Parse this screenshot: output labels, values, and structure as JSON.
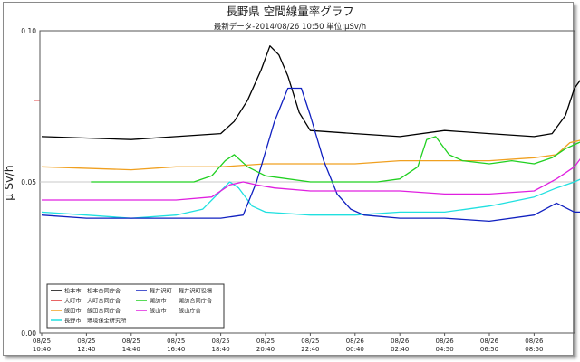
{
  "chart_data": {
    "type": "line",
    "title": "長野県 空間線量率グラフ",
    "subtitle": "最新データ-2014/08/26 10:50  単位:μSv/h",
    "ylabel": "μ Sv/h",
    "ylim": [
      0,
      0.1
    ],
    "yticks": [
      "0.00",
      "0.05",
      "0.10"
    ],
    "xticks": [
      {
        "date": "08/25",
        "time": "10:40"
      },
      {
        "date": "08/25",
        "time": "12:40"
      },
      {
        "date": "08/25",
        "time": "14:40"
      },
      {
        "date": "08/25",
        "time": "16:40"
      },
      {
        "date": "08/25",
        "time": "18:40"
      },
      {
        "date": "08/25",
        "time": "20:40"
      },
      {
        "date": "08/25",
        "time": "22:40"
      },
      {
        "date": "08/26",
        "time": "00:40"
      },
      {
        "date": "08/26",
        "time": "02:40"
      },
      {
        "date": "08/26",
        "time": "04:50"
      },
      {
        "date": "08/26",
        "time": "06:50"
      },
      {
        "date": "08/26",
        "time": "08:50"
      }
    ],
    "grid": "horizontal",
    "legend_position": "bottom-left",
    "series": [
      {
        "name": "松本市 松本合同庁舎",
        "color": "#000000",
        "points": [
          [
            0,
            0.065
          ],
          [
            2,
            0.064
          ],
          [
            3,
            0.065
          ],
          [
            4,
            0.066
          ],
          [
            4.3,
            0.07
          ],
          [
            4.6,
            0.077
          ],
          [
            4.9,
            0.087
          ],
          [
            5.1,
            0.095
          ],
          [
            5.3,
            0.092
          ],
          [
            5.5,
            0.085
          ],
          [
            5.75,
            0.073
          ],
          [
            6,
            0.067
          ],
          [
            7,
            0.066
          ],
          [
            8,
            0.065
          ],
          [
            9,
            0.067
          ],
          [
            10,
            0.066
          ],
          [
            11,
            0.065
          ],
          [
            11.4,
            0.066
          ],
          [
            11.7,
            0.072
          ],
          [
            11.9,
            0.081
          ],
          [
            12.1,
            0.085
          ],
          [
            12.3,
            0.085
          ]
        ]
      },
      {
        "name": "大町市 大町合同庁舎",
        "color": "#e03030",
        "points": [
          [
            -0.18,
            0.077
          ],
          [
            -0.05,
            0.077
          ]
        ]
      },
      {
        "name": "飯田市 飯田合同庁舎",
        "color": "#f0a020",
        "points": [
          [
            0,
            0.055
          ],
          [
            2,
            0.054
          ],
          [
            3,
            0.055
          ],
          [
            4,
            0.055
          ],
          [
            5,
            0.056
          ],
          [
            6,
            0.056
          ],
          [
            7,
            0.056
          ],
          [
            8,
            0.057
          ],
          [
            9,
            0.057
          ],
          [
            10,
            0.057
          ],
          [
            11,
            0.058
          ],
          [
            11.5,
            0.059
          ],
          [
            11.8,
            0.063
          ],
          [
            12.1,
            0.064
          ],
          [
            12.3,
            0.065
          ]
        ]
      },
      {
        "name": "長野市 環境保全研究所",
        "color": "#20e0e0",
        "points": [
          [
            0,
            0.04
          ],
          [
            1,
            0.039
          ],
          [
            2,
            0.038
          ],
          [
            3,
            0.039
          ],
          [
            3.6,
            0.041
          ],
          [
            4.0,
            0.047
          ],
          [
            4.2,
            0.05
          ],
          [
            4.4,
            0.048
          ],
          [
            4.7,
            0.042
          ],
          [
            5,
            0.04
          ],
          [
            6,
            0.039
          ],
          [
            7,
            0.039
          ],
          [
            8,
            0.04
          ],
          [
            9,
            0.04
          ],
          [
            10,
            0.042
          ],
          [
            11,
            0.045
          ],
          [
            11.5,
            0.048
          ],
          [
            11.9,
            0.05
          ],
          [
            12.2,
            0.052
          ],
          [
            12.3,
            0.052
          ]
        ]
      },
      {
        "name": "軽井沢町 軽井沢町役場",
        "color": "#1020c0",
        "points": [
          [
            0,
            0.039
          ],
          [
            1,
            0.038
          ],
          [
            2,
            0.038
          ],
          [
            3,
            0.038
          ],
          [
            4,
            0.038
          ],
          [
            4.5,
            0.039
          ],
          [
            4.8,
            0.05
          ],
          [
            5.2,
            0.07
          ],
          [
            5.5,
            0.081
          ],
          [
            5.8,
            0.081
          ],
          [
            6.0,
            0.072
          ],
          [
            6.3,
            0.057
          ],
          [
            6.6,
            0.046
          ],
          [
            6.9,
            0.041
          ],
          [
            7.2,
            0.039
          ],
          [
            8,
            0.038
          ],
          [
            9,
            0.038
          ],
          [
            10,
            0.037
          ],
          [
            11,
            0.039
          ],
          [
            11.5,
            0.043
          ],
          [
            11.9,
            0.04
          ],
          [
            12.1,
            0.04
          ],
          [
            12.3,
            0.048
          ]
        ]
      },
      {
        "name": "諏訪市 諏訪合同庁舎",
        "color": "#20d020",
        "points": [
          [
            1.1,
            0.05
          ],
          [
            1.2,
            0.05
          ],
          [
            1.5,
            0.05
          ],
          [
            3.4,
            0.05
          ],
          [
            3.8,
            0.052
          ],
          [
            4.1,
            0.057
          ],
          [
            4.3,
            0.059
          ],
          [
            4.6,
            0.055
          ],
          [
            5,
            0.052
          ],
          [
            6,
            0.05
          ],
          [
            7,
            0.05
          ],
          [
            7.5,
            0.05
          ],
          [
            8,
            0.051
          ],
          [
            8.4,
            0.055
          ],
          [
            8.6,
            0.064
          ],
          [
            8.8,
            0.065
          ],
          [
            9.1,
            0.059
          ],
          [
            9.4,
            0.057
          ],
          [
            10,
            0.056
          ],
          [
            10.5,
            0.057
          ],
          [
            11,
            0.056
          ],
          [
            11.4,
            0.058
          ],
          [
            11.7,
            0.061
          ],
          [
            12.0,
            0.063
          ],
          [
            12.3,
            0.065
          ]
        ]
      },
      {
        "name": "飯山市 飯山庁舎",
        "color": "#e020e0",
        "points": [
          [
            0,
            0.044
          ],
          [
            1,
            0.044
          ],
          [
            2,
            0.044
          ],
          [
            3,
            0.044
          ],
          [
            3.8,
            0.045
          ],
          [
            4.2,
            0.049
          ],
          [
            4.5,
            0.05
          ],
          [
            4.8,
            0.049
          ],
          [
            5.2,
            0.048
          ],
          [
            6,
            0.047
          ],
          [
            7,
            0.047
          ],
          [
            8,
            0.047
          ],
          [
            9,
            0.046
          ],
          [
            10,
            0.046
          ],
          [
            11,
            0.047
          ],
          [
            11.5,
            0.051
          ],
          [
            11.9,
            0.055
          ],
          [
            12.2,
            0.061
          ],
          [
            12.3,
            0.062
          ]
        ]
      }
    ]
  },
  "legend": {
    "columns": [
      [
        {
          "city": "松本市",
          "site": "松本合同庁舎",
          "color": "#000000"
        },
        {
          "city": "大町市",
          "site": "大町合同庁舎",
          "color": "#e03030"
        },
        {
          "city": "飯田市",
          "site": "飯田合同庁舎",
          "color": "#f0a020"
        },
        {
          "city": "長野市",
          "site": "環境保全研究所",
          "color": "#20e0e0"
        }
      ],
      [
        {
          "city": "軽井沢町",
          "site": "軽井沢町役場",
          "color": "#1020c0"
        },
        {
          "city": "諏訪市",
          "site": "諏訪合同庁舎",
          "color": "#20d020"
        },
        {
          "city": "飯山市",
          "site": "飯山庁舎",
          "color": "#e020e0"
        }
      ]
    ]
  }
}
